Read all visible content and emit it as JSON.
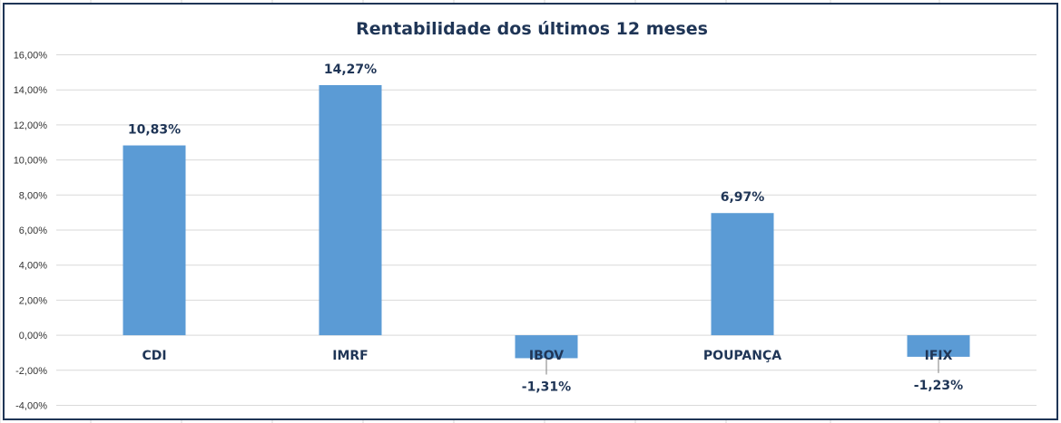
{
  "chart_data": {
    "type": "bar",
    "title": "Rentabilidade dos últimos 12 meses",
    "categories": [
      "CDI",
      "IMRF",
      "IBOV",
      "POUPANÇA",
      "IFIX"
    ],
    "values": [
      10.83,
      14.27,
      -1.31,
      6.97,
      -1.23
    ],
    "data_labels": [
      "10,83%",
      "14,27%",
      "-1,31%",
      "6,97%",
      "-1,23%"
    ],
    "ylim": [
      -4,
      16
    ],
    "y_ticks": [
      16,
      14,
      12,
      10,
      8,
      6,
      4,
      2,
      0,
      -2,
      -4
    ],
    "y_tick_labels": [
      "16,00%",
      "14,00%",
      "12,00%",
      "10,00%",
      "8,00%",
      "6,00%",
      "4,00%",
      "2,00%",
      "0,00%",
      "-2,00%",
      "-4,00%"
    ],
    "xlabel": "",
    "ylabel": "",
    "grid": true,
    "legend": "none",
    "bar_color": "#5b9bd5",
    "title_color": "#1f3556"
  }
}
